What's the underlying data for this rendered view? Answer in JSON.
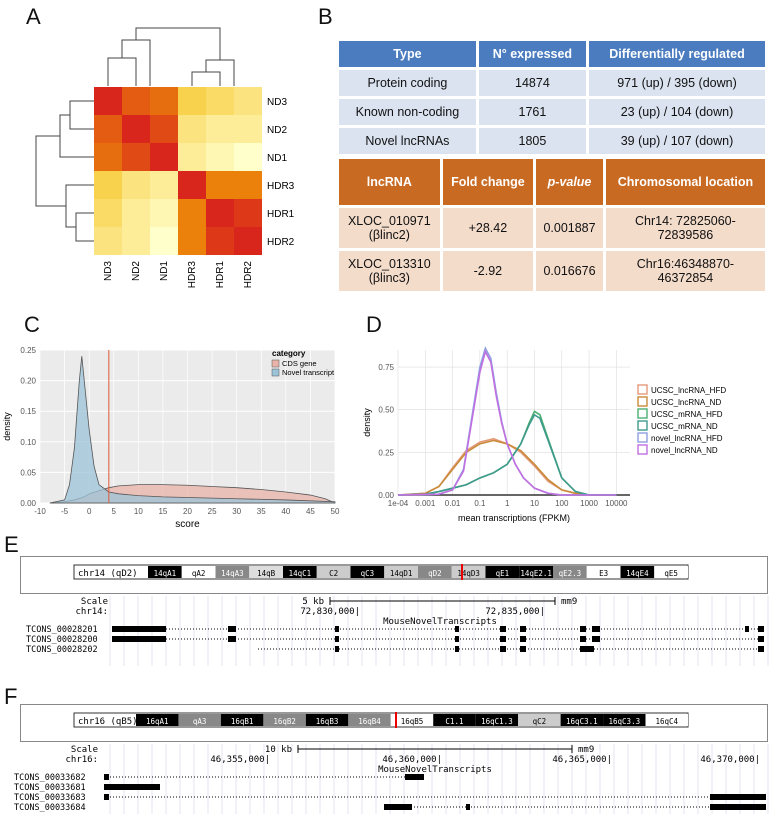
{
  "panels": {
    "a": "A",
    "b": "B",
    "c": "C",
    "d": "D",
    "e": "E",
    "f": "F"
  },
  "heatmap": {
    "rows": [
      "ND3",
      "ND2",
      "ND1",
      "HDR3",
      "HDR1",
      "HDR2"
    ],
    "cols": [
      "ND3",
      "ND2",
      "ND1",
      "HDR3",
      "HDR1",
      "HDR2"
    ],
    "values": [
      [
        1.0,
        0.85,
        0.8,
        0.45,
        0.4,
        0.35
      ],
      [
        0.85,
        1.0,
        0.9,
        0.35,
        0.3,
        0.3
      ],
      [
        0.8,
        0.9,
        1.0,
        0.3,
        0.25,
        0.2
      ],
      [
        0.45,
        0.35,
        0.3,
        1.0,
        0.75,
        0.75
      ],
      [
        0.4,
        0.3,
        0.25,
        0.75,
        1.0,
        0.95
      ],
      [
        0.35,
        0.3,
        0.2,
        0.75,
        0.95,
        1.0
      ]
    ],
    "colors": {
      "low": "#ffffcc",
      "mid": "#f5b700",
      "high": "#d9261c"
    }
  },
  "table1": {
    "headers": [
      "Type",
      "N° expressed",
      "Differentially regulated"
    ],
    "rows": [
      [
        "Protein coding",
        "14874",
        "971 (up) / 395 (down)"
      ],
      [
        "Known non-coding",
        "1761",
        "23 (up) / 104 (down)"
      ],
      [
        "Novel lncRNAs",
        "1805",
        "39 (up) / 107 (down)"
      ]
    ]
  },
  "table2": {
    "headers": [
      "lncRNA",
      "Fold change",
      "p-value",
      "Chromosomal location"
    ],
    "rows": [
      {
        "id": "XLOC_010971",
        "alias": "(βlinc2)",
        "fold": "+28.42",
        "p": "0.001887",
        "loc1": "Chr14: 72825060-",
        "loc2": "72839586"
      },
      {
        "id": "XLOC_013310",
        "alias": "(βlinc3)",
        "fold": "-2.92",
        "p": "0.016676",
        "loc1": "Chr16:46348870-",
        "loc2": "46372854"
      }
    ]
  },
  "chart_data": [
    {
      "type": "area",
      "panel": "C",
      "xlabel": "score",
      "ylabel": "density",
      "xlim": [
        -10,
        50
      ],
      "ylim": [
        0,
        0.25
      ],
      "xticks": [
        -10,
        -5,
        0,
        5,
        10,
        15,
        20,
        25,
        30,
        35,
        40,
        45,
        50
      ],
      "yticks": [
        0.0,
        0.05,
        0.1,
        0.15,
        0.2,
        0.25
      ],
      "vline": 4,
      "legend_title": "category",
      "series": [
        {
          "name": "CDS gene",
          "color": "#e8b3a8",
          "x": [
            -8,
            -5,
            -3,
            -1,
            0,
            2,
            4,
            6,
            10,
            15,
            20,
            25,
            30,
            35,
            40,
            45,
            48,
            50
          ],
          "y": [
            0,
            0.002,
            0.005,
            0.01,
            0.015,
            0.02,
            0.025,
            0.028,
            0.03,
            0.03,
            0.029,
            0.027,
            0.025,
            0.022,
            0.018,
            0.013,
            0.007,
            0
          ]
        },
        {
          "name": "Novel transcript",
          "color": "#9cc3d8",
          "x": [
            -8,
            -5,
            -4,
            -3,
            -2,
            -1.5,
            -1,
            0,
            1,
            2,
            4,
            6,
            10,
            15,
            20,
            30,
            40,
            50
          ],
          "y": [
            0,
            0.005,
            0.03,
            0.09,
            0.2,
            0.24,
            0.2,
            0.12,
            0.06,
            0.03,
            0.018,
            0.015,
            0.012,
            0.01,
            0.009,
            0.007,
            0.005,
            0.002
          ]
        }
      ]
    },
    {
      "type": "line",
      "panel": "D",
      "xlabel": "mean transcriptions (FPKM)",
      "ylabel": "density",
      "xscale": "log10",
      "xlim": [
        -4,
        4.5
      ],
      "ylim": [
        0,
        0.85
      ],
      "xticks": [
        "1e-04",
        "0.001",
        "0.01",
        "0.1",
        "1",
        "10",
        "100",
        "1000",
        "10000"
      ],
      "yticks": [
        "0.00",
        "0.25",
        "0.50",
        "0.75"
      ],
      "series": [
        {
          "name": "UCSC_lncRNA_HFD",
          "color": "#e39a79",
          "logx": [
            -4,
            -3,
            -2.5,
            -2,
            -1.5,
            -1,
            -0.5,
            0,
            0.5,
            1,
            1.5,
            2,
            2.5,
            3,
            4
          ],
          "y": [
            0,
            0.01,
            0.05,
            0.16,
            0.26,
            0.31,
            0.33,
            0.3,
            0.25,
            0.17,
            0.08,
            0.03,
            0.01,
            0,
            0
          ]
        },
        {
          "name": "UCSC_lncRNA_ND",
          "color": "#c98a3a",
          "logx": [
            -4,
            -3,
            -2.5,
            -2,
            -1.5,
            -1,
            -0.5,
            0,
            0.5,
            1,
            1.5,
            2,
            2.5,
            3,
            4
          ],
          "y": [
            0,
            0.01,
            0.05,
            0.15,
            0.25,
            0.3,
            0.32,
            0.3,
            0.26,
            0.18,
            0.09,
            0.03,
            0.01,
            0,
            0
          ]
        },
        {
          "name": "UCSC_mRNA_HFD",
          "color": "#4caf73",
          "logx": [
            -4,
            -3,
            -2.5,
            -2,
            -1.5,
            -1,
            -0.5,
            0,
            0.5,
            0.8,
            1,
            1.2,
            1.5,
            2,
            2.5,
            3,
            4
          ],
          "y": [
            0,
            0.005,
            0.02,
            0.04,
            0.06,
            0.1,
            0.13,
            0.18,
            0.3,
            0.42,
            0.49,
            0.47,
            0.33,
            0.1,
            0.02,
            0,
            0
          ]
        },
        {
          "name": "UCSC_mRNA_ND",
          "color": "#3e9a8c",
          "logx": [
            -4,
            -3,
            -2.5,
            -2,
            -1.5,
            -1,
            -0.5,
            0,
            0.5,
            0.8,
            1,
            1.2,
            1.5,
            2,
            2.5,
            3,
            4
          ],
          "y": [
            0,
            0.005,
            0.02,
            0.04,
            0.06,
            0.1,
            0.13,
            0.18,
            0.3,
            0.41,
            0.47,
            0.45,
            0.32,
            0.1,
            0.02,
            0,
            0
          ]
        },
        {
          "name": "novel_lncRNA_HFD",
          "color": "#8f9ee3",
          "logx": [
            -4,
            -2.5,
            -2,
            -1.6,
            -1.3,
            -1,
            -0.8,
            -0.6,
            -0.4,
            -0.2,
            0,
            0.3,
            0.6,
            1,
            1.5,
            2,
            4
          ],
          "y": [
            0,
            0.005,
            0.03,
            0.15,
            0.45,
            0.75,
            0.86,
            0.8,
            0.6,
            0.43,
            0.3,
            0.18,
            0.1,
            0.04,
            0.01,
            0,
            0
          ]
        },
        {
          "name": "novel_lncRNA_ND",
          "color": "#c070e0",
          "logx": [
            -4,
            -2.5,
            -2,
            -1.6,
            -1.3,
            -1,
            -0.8,
            -0.6,
            -0.4,
            -0.2,
            0,
            0.3,
            0.6,
            1,
            1.5,
            2,
            4
          ],
          "y": [
            0,
            0.005,
            0.03,
            0.14,
            0.43,
            0.72,
            0.84,
            0.78,
            0.58,
            0.42,
            0.3,
            0.18,
            0.1,
            0.04,
            0.01,
            0,
            0
          ]
        }
      ]
    }
  ],
  "track_e": {
    "chrom": "chr14 (qD2)",
    "bands": [
      {
        "label": "14qA1",
        "shade": "#000"
      },
      {
        "label": "qA2",
        "shade": "#fff"
      },
      {
        "label": "14qA3",
        "shade": "#888"
      },
      {
        "label": "14qB",
        "shade": "#ddd"
      },
      {
        "label": "14qC1",
        "shade": "#000"
      },
      {
        "label": "C2",
        "shade": "#ccc"
      },
      {
        "label": "qC3",
        "shade": "#000"
      },
      {
        "label": "14qD1",
        "shade": "#ccc"
      },
      {
        "label": "qD2",
        "shade": "#888"
      },
      {
        "label": "14qD3",
        "shade": "#ccc"
      },
      {
        "label": "qE1",
        "shade": "#000"
      },
      {
        "label": "14qE2.1",
        "shade": "#000"
      },
      {
        "label": "qE2.3",
        "shade": "#888"
      },
      {
        "label": "E3",
        "shade": "#fff"
      },
      {
        "label": "14qE4",
        "shade": "#000"
      },
      {
        "label": "qE5",
        "shade": "#fff"
      }
    ],
    "scale_label": "Scale",
    "scale_value": "5 kb",
    "assembly": "mm9",
    "chr_label": "chr14:",
    "coord1": "72,830,000|",
    "coord2": "72,835,000|",
    "track_title": "MouseNovelTranscripts",
    "transcripts": [
      "TCONS_00028201",
      "TCONS_00028200",
      "TCONS_00028202"
    ]
  },
  "track_f": {
    "chrom": "chr16 (qB5)",
    "bands": [
      {
        "label": "16qA1",
        "shade": "#000"
      },
      {
        "label": "qA3",
        "shade": "#888"
      },
      {
        "label": "16qB1",
        "shade": "#000"
      },
      {
        "label": "16qB2",
        "shade": "#888"
      },
      {
        "label": "16qB3",
        "shade": "#000"
      },
      {
        "label": "16qB4",
        "shade": "#888"
      },
      {
        "label": "16qB5",
        "shade": "#fff"
      },
      {
        "label": "C1.1",
        "shade": "#000"
      },
      {
        "label": "16qC1.3",
        "shade": "#000"
      },
      {
        "label": "qC2",
        "shade": "#ccc"
      },
      {
        "label": "16qC3.1",
        "shade": "#000"
      },
      {
        "label": "16qC3.3",
        "shade": "#000"
      },
      {
        "label": "16qC4",
        "shade": "#fff"
      }
    ],
    "scale_label": "Scale",
    "scale_value": "10 kb",
    "assembly": "mm9",
    "chr_label": "chr16:",
    "coord1": "46,355,000|",
    "coord2": "46,360,000|",
    "coord3": "46,365,000|",
    "coord4": "46,370,000|",
    "track_title": "MouseNovelTranscripts",
    "transcripts": [
      "TCONS_00033682",
      "TCONS_00033681",
      "TCONS_00033683",
      "TCONS_00033684"
    ]
  }
}
